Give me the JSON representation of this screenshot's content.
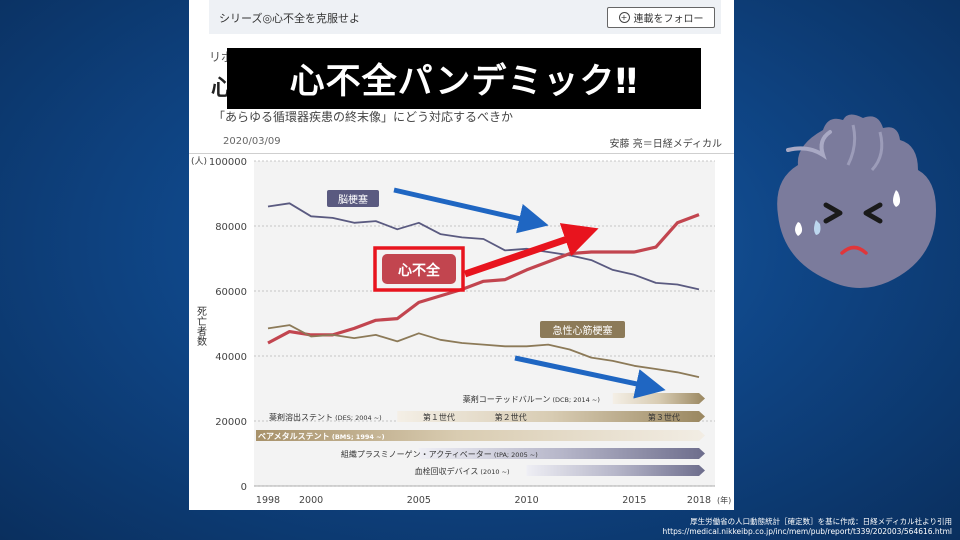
{
  "header": {
    "series_label": "シリーズ◎心不全を克服せよ",
    "follow_button": "連載をフォロー",
    "kicker_visible": "リポ",
    "title_visible_char": "心",
    "subtitle": "「あらゆる循環器疾患の終末像」にどう対応するべきか",
    "date": "2020/03/09",
    "author": "安藤 亮＝日経メディカル"
  },
  "overlay_title": "心不全パンデミック‼",
  "source_note": {
    "line1": "厚生労働省の人口動態統計［確定数］を基に作成：日経メディカル社より引用",
    "line2": "https://medical.nikkeibp.co.jp/inc/mem/pub/report/t339/202003/564616.html"
  },
  "colors": {
    "heart_failure": "#c2454f",
    "stroke": "#5a5a80",
    "mi": "#8c7a58",
    "arrow_blue": "#1f66c2",
    "arrow_red": "#e8141e",
    "background": "#0f4687"
  },
  "chart_data": {
    "type": "line",
    "y_unit": "(人)",
    "x_unit": "(年)",
    "ylabel": "死亡者数",
    "ylim": [
      0,
      100000
    ],
    "xlim": [
      1998,
      2018
    ],
    "y_ticks": [
      0,
      20000,
      40000,
      60000,
      80000,
      100000
    ],
    "y_tick_labels": [
      "0",
      "20000",
      "40000",
      "60000",
      "80000",
      "100000"
    ],
    "x_ticks": [
      1998,
      2000,
      2005,
      2010,
      2015,
      2018
    ],
    "x_tick_labels": [
      "1998",
      "2000",
      "2005",
      "2010",
      "2015",
      "2018"
    ],
    "grid": true,
    "x": [
      1998,
      1999,
      2000,
      2001,
      2002,
      2003,
      2004,
      2005,
      2006,
      2007,
      2008,
      2009,
      2010,
      2011,
      2012,
      2013,
      2014,
      2015,
      2016,
      2017,
      2018
    ],
    "series": [
      {
        "name": "脳梗塞",
        "color": "#5a5a80",
        "values": [
          86000,
          87000,
          83000,
          82500,
          81000,
          81500,
          79000,
          81000,
          77500,
          76500,
          76000,
          72500,
          73000,
          72000,
          71000,
          69500,
          66500,
          65000,
          62500,
          62000,
          60500
        ]
      },
      {
        "name": "心不全",
        "color": "#c2454f",
        "values": [
          44000,
          47500,
          46500,
          46500,
          48500,
          51000,
          51500,
          56500,
          58500,
          60500,
          63000,
          63500,
          66500,
          69000,
          71500,
          72000,
          72000,
          72000,
          73500,
          81000,
          83500
        ]
      },
      {
        "name": "急性心筋梗塞",
        "color": "#8c7a58",
        "values": [
          48500,
          49500,
          46000,
          46500,
          45500,
          46500,
          44500,
          47000,
          45000,
          44000,
          43500,
          43000,
          43000,
          43500,
          42000,
          39500,
          38500,
          37000,
          36000,
          35000,
          33500
        ]
      }
    ],
    "therapy_bars": [
      {
        "label": "薬剤コーテッドバルーン",
        "sub": "(DCB; 2014 ~)",
        "start": 2014
      },
      {
        "label": "薬剤溶出ステント",
        "sub": "(DES; 2004 ~)",
        "start": 2004,
        "generations": [
          "第１世代",
          "第２世代",
          "第３世代"
        ]
      },
      {
        "label": "ベアメタルステント",
        "sub": "(BMS; 1994 ~)",
        "start": 1994
      },
      {
        "label": "組織プラスミノーゲン・アクティベーター",
        "sub": "(tPA; 2005 ~)",
        "start": 2005
      },
      {
        "label": "血栓回収デバイス",
        "sub": "(2010 ~)",
        "start": 2010
      }
    ]
  }
}
